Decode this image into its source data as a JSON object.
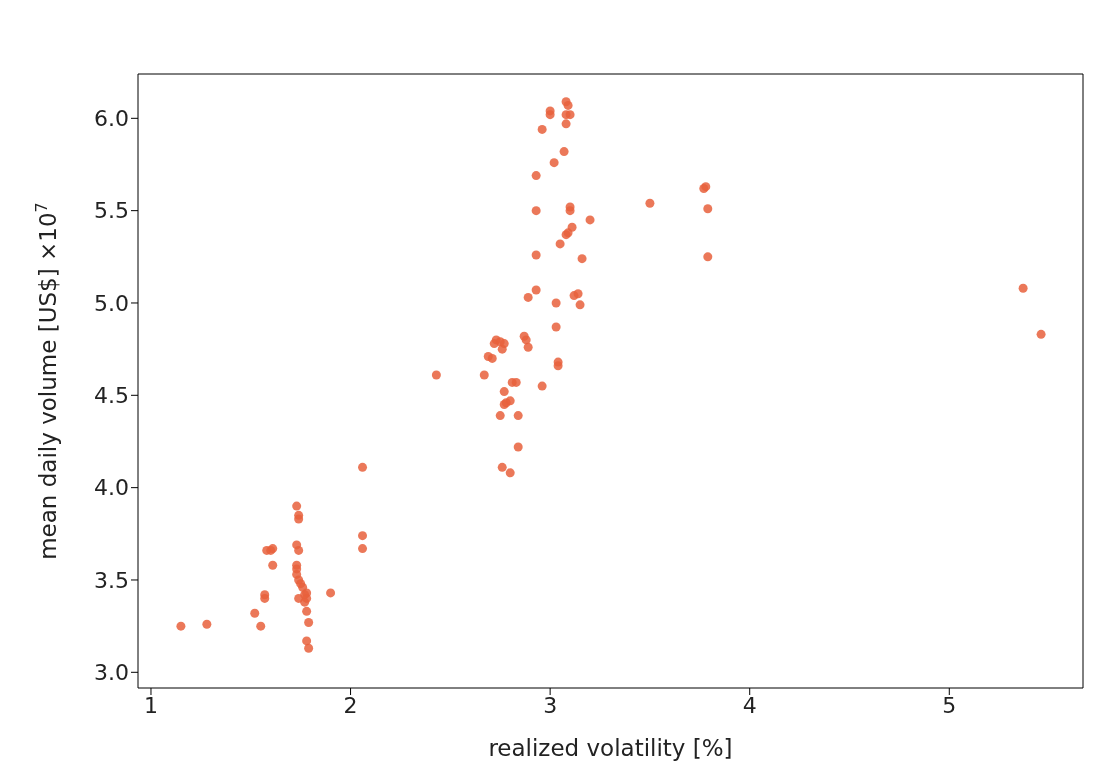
{
  "chart_data": {
    "type": "scatter",
    "xlabel": "realized volatility [%]",
    "ylabel": "mean daily volume [US$] ×10$^{7}$",
    "xlim": [
      0.935,
      5.67
    ],
    "ylim": [
      2.915,
      6.24
    ],
    "xticks": [
      1,
      2,
      3,
      4,
      5
    ],
    "yticks": [
      {
        "value": 3,
        "label": "3.0"
      },
      {
        "value": 3.5,
        "label": "3.5"
      },
      {
        "value": 4,
        "label": "4.0"
      },
      {
        "value": 4.5,
        "label": "4.5"
      },
      {
        "value": 5,
        "label": "5.0"
      },
      {
        "value": 5.5,
        "label": "5.5"
      },
      {
        "value": 6,
        "label": "6.0"
      }
    ],
    "grid": false,
    "marker": "circle",
    "series": [
      {
        "color": "#e8603c",
        "x": [
          1.15,
          1.28,
          1.52,
          1.55,
          1.57,
          1.57,
          1.58,
          1.6,
          1.61,
          1.61,
          1.73,
          1.74,
          1.74,
          1.73,
          1.74,
          1.73,
          1.73,
          1.73,
          1.74,
          1.75,
          1.74,
          1.76,
          1.77,
          1.78,
          1.78,
          1.77,
          1.78,
          1.79,
          1.78,
          1.79,
          1.9,
          2.06,
          2.06,
          2.06,
          2.43,
          2.67,
          2.69,
          2.71,
          2.72,
          2.73,
          2.75,
          2.76,
          2.77,
          2.75,
          2.76,
          2.77,
          2.77,
          2.78,
          2.8,
          2.81,
          2.83,
          2.84,
          2.8,
          2.84,
          2.87,
          2.88,
          2.89,
          2.89,
          2.93,
          2.93,
          2.93,
          2.93,
          2.96,
          2.96,
          3.0,
          3.0,
          3.02,
          3.03,
          3.03,
          3.04,
          3.04,
          3.05,
          3.07,
          3.08,
          3.09,
          3.08,
          3.1,
          3.08,
          3.08,
          3.09,
          3.1,
          3.1,
          3.11,
          3.12,
          3.14,
          3.15,
          3.16,
          3.2,
          3.5,
          3.77,
          3.78,
          3.79,
          3.79,
          5.37,
          5.46
        ],
        "values": [
          3.25,
          3.26,
          3.32,
          3.25,
          3.42,
          3.4,
          3.66,
          3.66,
          3.67,
          3.58,
          3.9,
          3.85,
          3.83,
          3.69,
          3.66,
          3.58,
          3.56,
          3.53,
          3.5,
          3.48,
          3.4,
          3.46,
          3.42,
          3.4,
          3.43,
          3.38,
          3.33,
          3.27,
          3.17,
          3.13,
          3.43,
          4.11,
          3.74,
          3.67,
          4.61,
          4.61,
          4.71,
          4.7,
          4.78,
          4.8,
          4.79,
          4.75,
          4.78,
          4.39,
          4.11,
          4.52,
          4.45,
          4.46,
          4.47,
          4.57,
          4.57,
          4.39,
          4.08,
          4.22,
          4.82,
          4.8,
          4.76,
          5.03,
          5.07,
          5.26,
          5.5,
          5.69,
          4.55,
          5.94,
          6.04,
          6.02,
          5.76,
          4.87,
          5.0,
          4.66,
          4.68,
          5.32,
          5.82,
          6.09,
          6.07,
          6.02,
          6.02,
          5.97,
          5.37,
          5.38,
          5.52,
          5.5,
          5.41,
          5.04,
          5.05,
          4.99,
          5.24,
          5.45,
          5.54,
          5.62,
          5.63,
          5.51,
          5.25,
          5.08,
          4.83
        ]
      }
    ]
  }
}
